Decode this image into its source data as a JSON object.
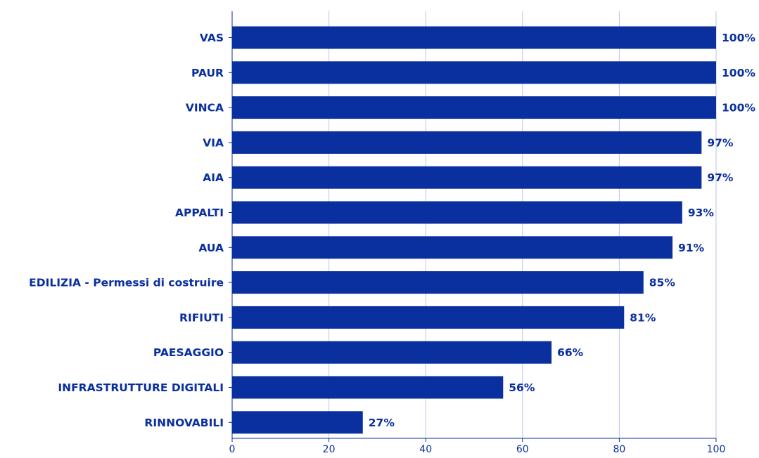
{
  "chart_data": {
    "type": "bar",
    "orientation": "horizontal",
    "categories": [
      "VAS",
      "PAUR",
      "VINCA",
      "VIA",
      "AIA",
      "APPALTI",
      "AUA",
      "EDILIZIA - Permessi di costruire",
      "RIFIUTI",
      "PAESAGGIO",
      "INFRASTRUTTURE DIGITALI",
      "RINNOVABILI"
    ],
    "values": [
      100,
      100,
      100,
      97,
      97,
      93,
      91,
      85,
      81,
      66,
      56,
      27
    ],
    "value_labels": [
      "100%",
      "100%",
      "100%",
      "97%",
      "97%",
      "93%",
      "91%",
      "85%",
      "81%",
      "66%",
      "56%",
      "27%"
    ],
    "xlim": [
      0,
      100
    ],
    "xticks": [
      "0",
      "20",
      "40",
      "60",
      "80",
      "100"
    ],
    "grid": "vertical",
    "title": "",
    "xlabel": "",
    "ylabel": ""
  },
  "colors": {
    "bar": "#0a2f9e",
    "text": "#0a2f9e",
    "grid": "#b9c6ee",
    "axis": "#0a2f9e"
  }
}
